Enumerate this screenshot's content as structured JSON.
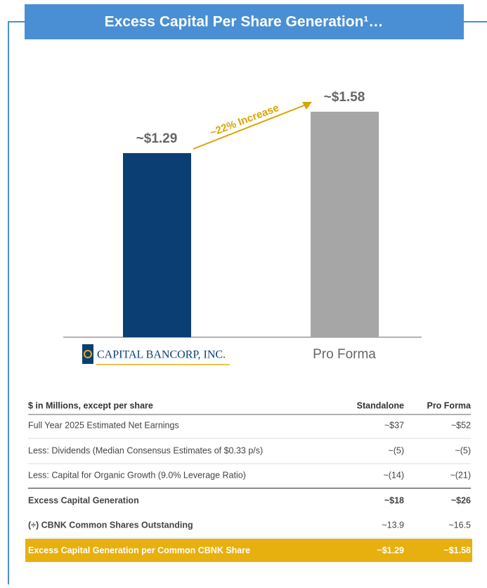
{
  "title": "Excess Capital Per Share Generation¹…",
  "chart_data": {
    "type": "bar",
    "categories": [
      "CAPITAL BANCORP, INC.",
      "Pro Forma"
    ],
    "values": [
      1.29,
      1.58
    ],
    "value_labels": [
      "~$1.29",
      "~$1.58"
    ],
    "colors": [
      "#0b3f73",
      "#a6a6a6"
    ],
    "annotation": "~22% Increase"
  },
  "table": {
    "header": [
      "$ in Millions, except per share",
      "Standalone",
      "Pro Forma"
    ],
    "rows": [
      [
        "Full Year 2025 Estimated Net Earnings",
        "~$37",
        "~$52"
      ],
      [
        "Less: Dividends (Median Consensus Estimates of $0.33 p/s)",
        "~(5)",
        "~(5)"
      ],
      [
        "Less: Capital for Organic Growth (9.0% Leverage Ratio)",
        "~(14)",
        "~(21)"
      ],
      [
        "Excess Capital Generation",
        "~$18",
        "~$26"
      ],
      [
        "(÷) CBNK Common Shares Outstanding",
        "~13.9",
        "~16.5"
      ],
      [
        "Excess Capital Generation per Common CBNK Share",
        "~$1.29",
        "~$1.58"
      ]
    ]
  }
}
